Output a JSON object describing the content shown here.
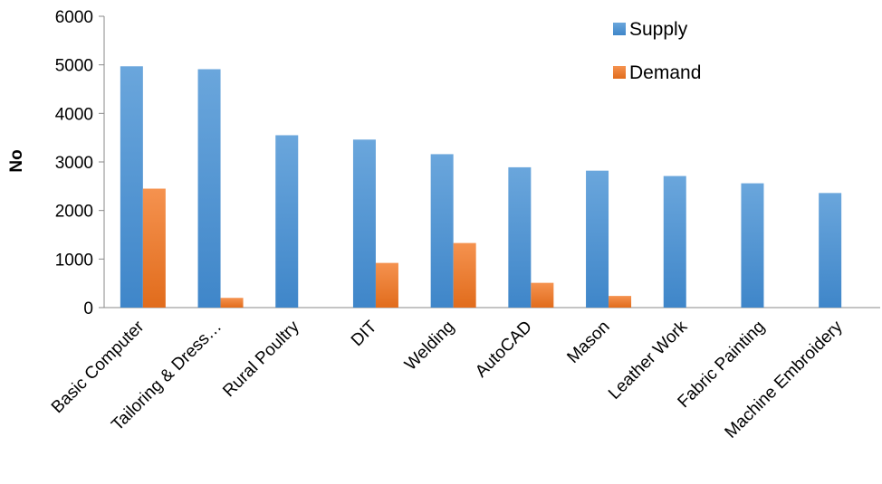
{
  "chart_data": {
    "type": "bar",
    "title": "",
    "xlabel": "",
    "ylabel": "No",
    "ylim": [
      0,
      6000
    ],
    "yticks": [
      0,
      1000,
      2000,
      3000,
      4000,
      5000,
      6000
    ],
    "grid": false,
    "legend_position": "top-right",
    "categories": [
      "Basic Computer",
      "Tailoring & Dress…",
      "Rural Poultry",
      "DIT",
      "Welding",
      "AutoCAD",
      "Mason",
      "Leather Work",
      "Fabric Painting",
      "Machine Embroidery"
    ],
    "series": [
      {
        "name": "Supply",
        "color": "#5b9bd5",
        "values": [
          4970,
          4910,
          3550,
          3460,
          3160,
          2890,
          2820,
          2710,
          2560,
          2360
        ]
      },
      {
        "name": "Demand",
        "color": "#ed7d31",
        "values": [
          2450,
          200,
          0,
          920,
          1330,
          510,
          240,
          0,
          0,
          0
        ]
      }
    ]
  }
}
